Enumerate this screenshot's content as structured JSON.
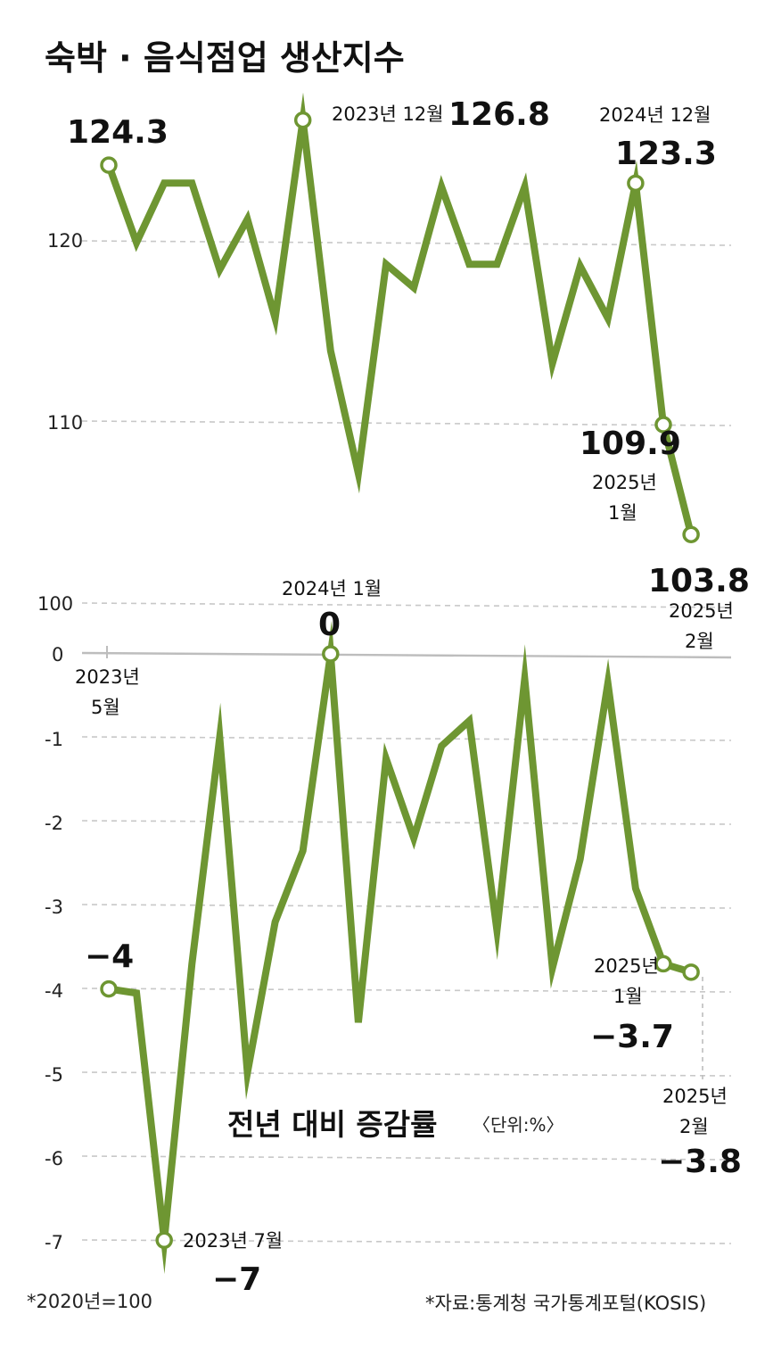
{
  "colors": {
    "line": "#6e9632",
    "marker_fill": "#ffffff",
    "text": "#111111",
    "grid": "#c8c8c8"
  },
  "chart_data": [
    {
      "type": "line",
      "title": "숙박 · 음식점업 생산지수",
      "y_ticks": [
        "120",
        "110",
        "100"
      ],
      "ylim": [
        100,
        128
      ],
      "x": [
        "2023-05",
        "2023-06",
        "2023-07",
        "2023-08",
        "2023-09",
        "2023-10",
        "2023-11",
        "2023-12",
        "2024-01",
        "2024-02",
        "2024-03",
        "2024-04",
        "2024-05",
        "2024-06",
        "2024-07",
        "2024-08",
        "2024-09",
        "2024-10",
        "2024-11",
        "2024-12",
        "2025-01",
        "2025-02"
      ],
      "values": [
        124.3,
        120.0,
        123.3,
        123.3,
        118.5,
        121.3,
        115.8,
        126.8,
        114.0,
        107.2,
        118.8,
        117.5,
        123.1,
        118.8,
        118.8,
        123.1,
        113.3,
        118.7,
        115.8,
        123.3,
        109.9,
        103.8
      ],
      "first_label": {
        "value": "124.3",
        "date": "2023년",
        "month": "5월"
      },
      "annotations": [
        {
          "date": "2023년 12월",
          "value": "126.8"
        },
        {
          "date": "2024년 12월",
          "value": "123.3"
        },
        {
          "value": "109.9",
          "date": "2025년",
          "month": "1월"
        },
        {
          "value": "103.8",
          "date": "2025년",
          "month": "2월"
        }
      ]
    },
    {
      "type": "line",
      "title": "전년 대비 증감률",
      "unit": "〈단위:%〉",
      "y_ticks": [
        "0",
        "-1",
        "-2",
        "-3",
        "-4",
        "-5",
        "-6",
        "-7"
      ],
      "ylim": [
        -7,
        0
      ],
      "x": [
        "2023-05",
        "2023-06",
        "2023-07",
        "2023-08",
        "2023-09",
        "2023-10",
        "2023-11",
        "2023-12",
        "2024-01",
        "2024-02",
        "2024-03",
        "2024-04",
        "2024-05",
        "2024-06",
        "2024-07",
        "2024-08",
        "2024-09",
        "2024-10",
        "2024-11",
        "2024-12",
        "2025-01",
        "2025-02"
      ],
      "values": [
        -4.0,
        -4.05,
        -7.0,
        -3.7,
        -1.0,
        -5.0,
        -3.2,
        -2.35,
        0.0,
        -4.4,
        -1.25,
        -2.2,
        -1.1,
        -0.8,
        -3.3,
        -0.3,
        -3.75,
        -2.45,
        -0.35,
        -2.8,
        -3.7,
        -3.8
      ],
      "annotations": [
        {
          "value": "−4"
        },
        {
          "date": "2023년 7월",
          "value": "−7"
        },
        {
          "date": "2024년 1월",
          "value": "0"
        },
        {
          "date": "2025년",
          "month": "1월",
          "value": "−3.7"
        },
        {
          "date": "2025년",
          "month": "2월",
          "value": "−3.8"
        }
      ]
    }
  ],
  "footer": {
    "base_note": "*2020년=100",
    "source": "*자료:통계청 국가통계포털(KOSIS)"
  }
}
